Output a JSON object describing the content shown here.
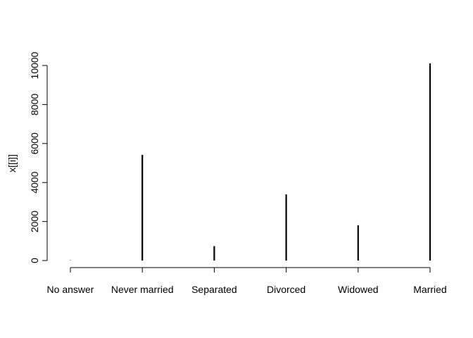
{
  "chart_data": {
    "type": "bar",
    "style": "histogram-spikes",
    "title": "",
    "xlabel": "",
    "ylabel": "x[[i]]",
    "categories": [
      "No answer",
      "Never married",
      "Separated",
      "Divorced",
      "Widowed",
      "Married"
    ],
    "values": [
      10,
      5420,
      740,
      3390,
      1810,
      10110
    ],
    "ylim": [
      0,
      10000
    ],
    "yticks": [
      0,
      2000,
      4000,
      6000,
      8000,
      10000
    ],
    "grid": false,
    "legend": "none",
    "bar_color": "#000000"
  }
}
